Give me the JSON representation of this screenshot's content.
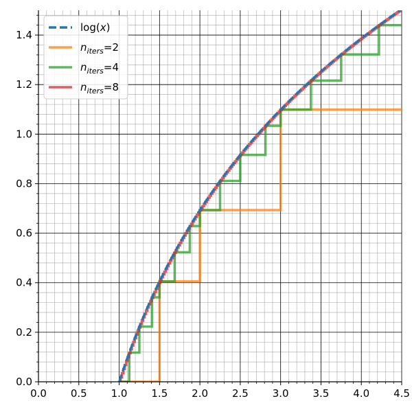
{
  "chart_data": {
    "type": "line",
    "title": "",
    "xlabel": "",
    "ylabel": "",
    "xlim": [
      0.0,
      4.5
    ],
    "ylim": [
      0.0,
      1.5
    ],
    "x_ticks": [
      "0.0",
      "0.5",
      "1.0",
      "1.5",
      "2.0",
      "2.5",
      "3.0",
      "3.5",
      "4.0",
      "4.5"
    ],
    "y_ticks": [
      "0.0",
      "0.2",
      "0.4",
      "0.6",
      "0.8",
      "1.0",
      "1.2",
      "1.4"
    ],
    "grid": {
      "major": true,
      "minor": true
    },
    "legend_position": "top-left",
    "series": [
      {
        "name": "log(x)",
        "legend_main": "log(",
        "legend_var": "x",
        "legend_tail": ")",
        "color": "#1f77b4",
        "style": "dashed",
        "kind": "curve",
        "function": "log",
        "x_range": [
          1.0,
          4.5
        ]
      },
      {
        "name": "n_iters=2",
        "legend_main": "n",
        "legend_sub": "iters",
        "legend_tail": "=2",
        "color": "#ff7f0e",
        "style": "solid",
        "kind": "step",
        "steps": [
          {
            "x": 1.0,
            "y": 0.0
          },
          {
            "x": 1.5,
            "y": 0.405
          },
          {
            "x": 2.0,
            "y": 0.693
          },
          {
            "x": 3.0,
            "y": 1.099
          },
          {
            "x": 4.5,
            "y": 1.099
          }
        ]
      },
      {
        "name": "n_iters=4",
        "legend_main": "n",
        "legend_sub": "iters",
        "legend_tail": "=4",
        "color": "#2ca02c",
        "style": "solid",
        "kind": "step",
        "steps": [
          {
            "x": 1.0,
            "y": 0.0
          },
          {
            "x": 1.125,
            "y": 0.118
          },
          {
            "x": 1.25,
            "y": 0.223
          },
          {
            "x": 1.406,
            "y": 0.341
          },
          {
            "x": 1.5,
            "y": 0.405
          },
          {
            "x": 1.6875,
            "y": 0.523
          },
          {
            "x": 1.875,
            "y": 0.629
          },
          {
            "x": 2.0,
            "y": 0.693
          },
          {
            "x": 2.25,
            "y": 0.811
          },
          {
            "x": 2.5,
            "y": 0.916
          },
          {
            "x": 2.8125,
            "y": 1.034
          },
          {
            "x": 3.0,
            "y": 1.099
          },
          {
            "x": 3.375,
            "y": 1.216
          },
          {
            "x": 3.75,
            "y": 1.322
          },
          {
            "x": 4.21875,
            "y": 1.44
          },
          {
            "x": 4.5,
            "y": 1.44
          }
        ]
      },
      {
        "name": "n_iters=8",
        "legend_main": "n",
        "legend_sub": "iters",
        "legend_tail": "=8",
        "color": "#d62728",
        "style": "solid",
        "kind": "fine-step",
        "function": "log",
        "x_range": [
          1.0,
          4.5
        ]
      }
    ]
  }
}
